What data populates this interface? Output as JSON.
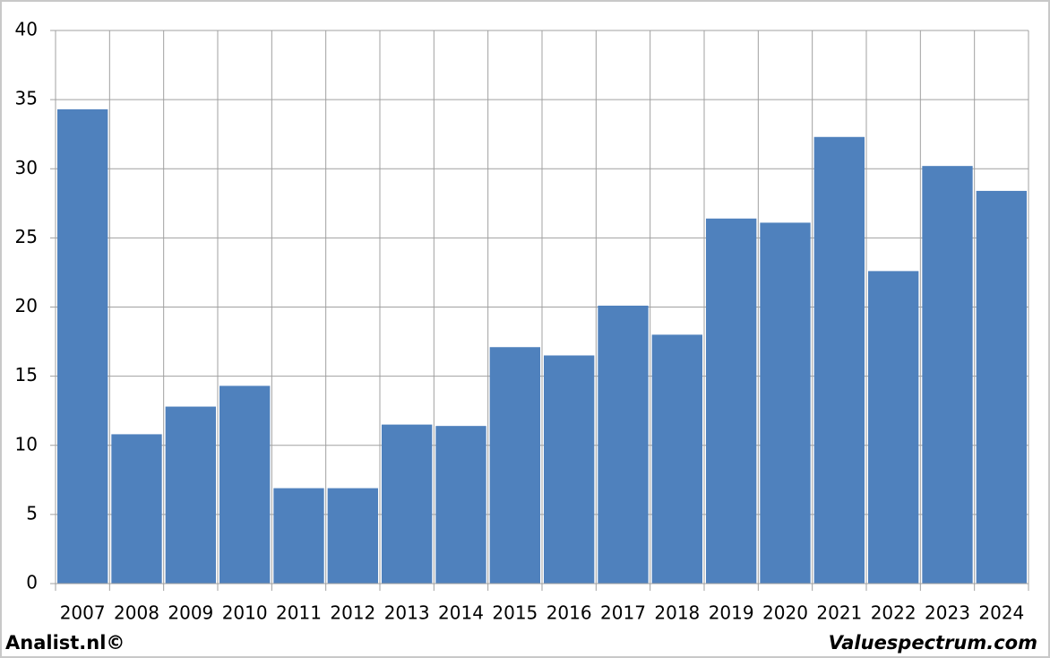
{
  "chart_data": {
    "type": "bar",
    "categories": [
      "2007",
      "2008",
      "2009",
      "2010",
      "2011",
      "2012",
      "2013",
      "2014",
      "2015",
      "2016",
      "2017",
      "2018",
      "2019",
      "2020",
      "2021",
      "2022",
      "2023",
      "2024"
    ],
    "values": [
      34.3,
      10.8,
      12.8,
      14.3,
      6.9,
      6.9,
      11.5,
      11.4,
      17.1,
      16.5,
      20.1,
      18.0,
      26.4,
      26.1,
      32.3,
      22.6,
      30.2,
      28.4
    ],
    "color": "#4f81bd",
    "ylim": [
      0,
      40
    ],
    "yticks": [
      0,
      5,
      10,
      15,
      20,
      25,
      30,
      35,
      40
    ],
    "grid": true,
    "footer_left": "Analist.nl©",
    "footer_right": "Valuespectrum.com"
  }
}
